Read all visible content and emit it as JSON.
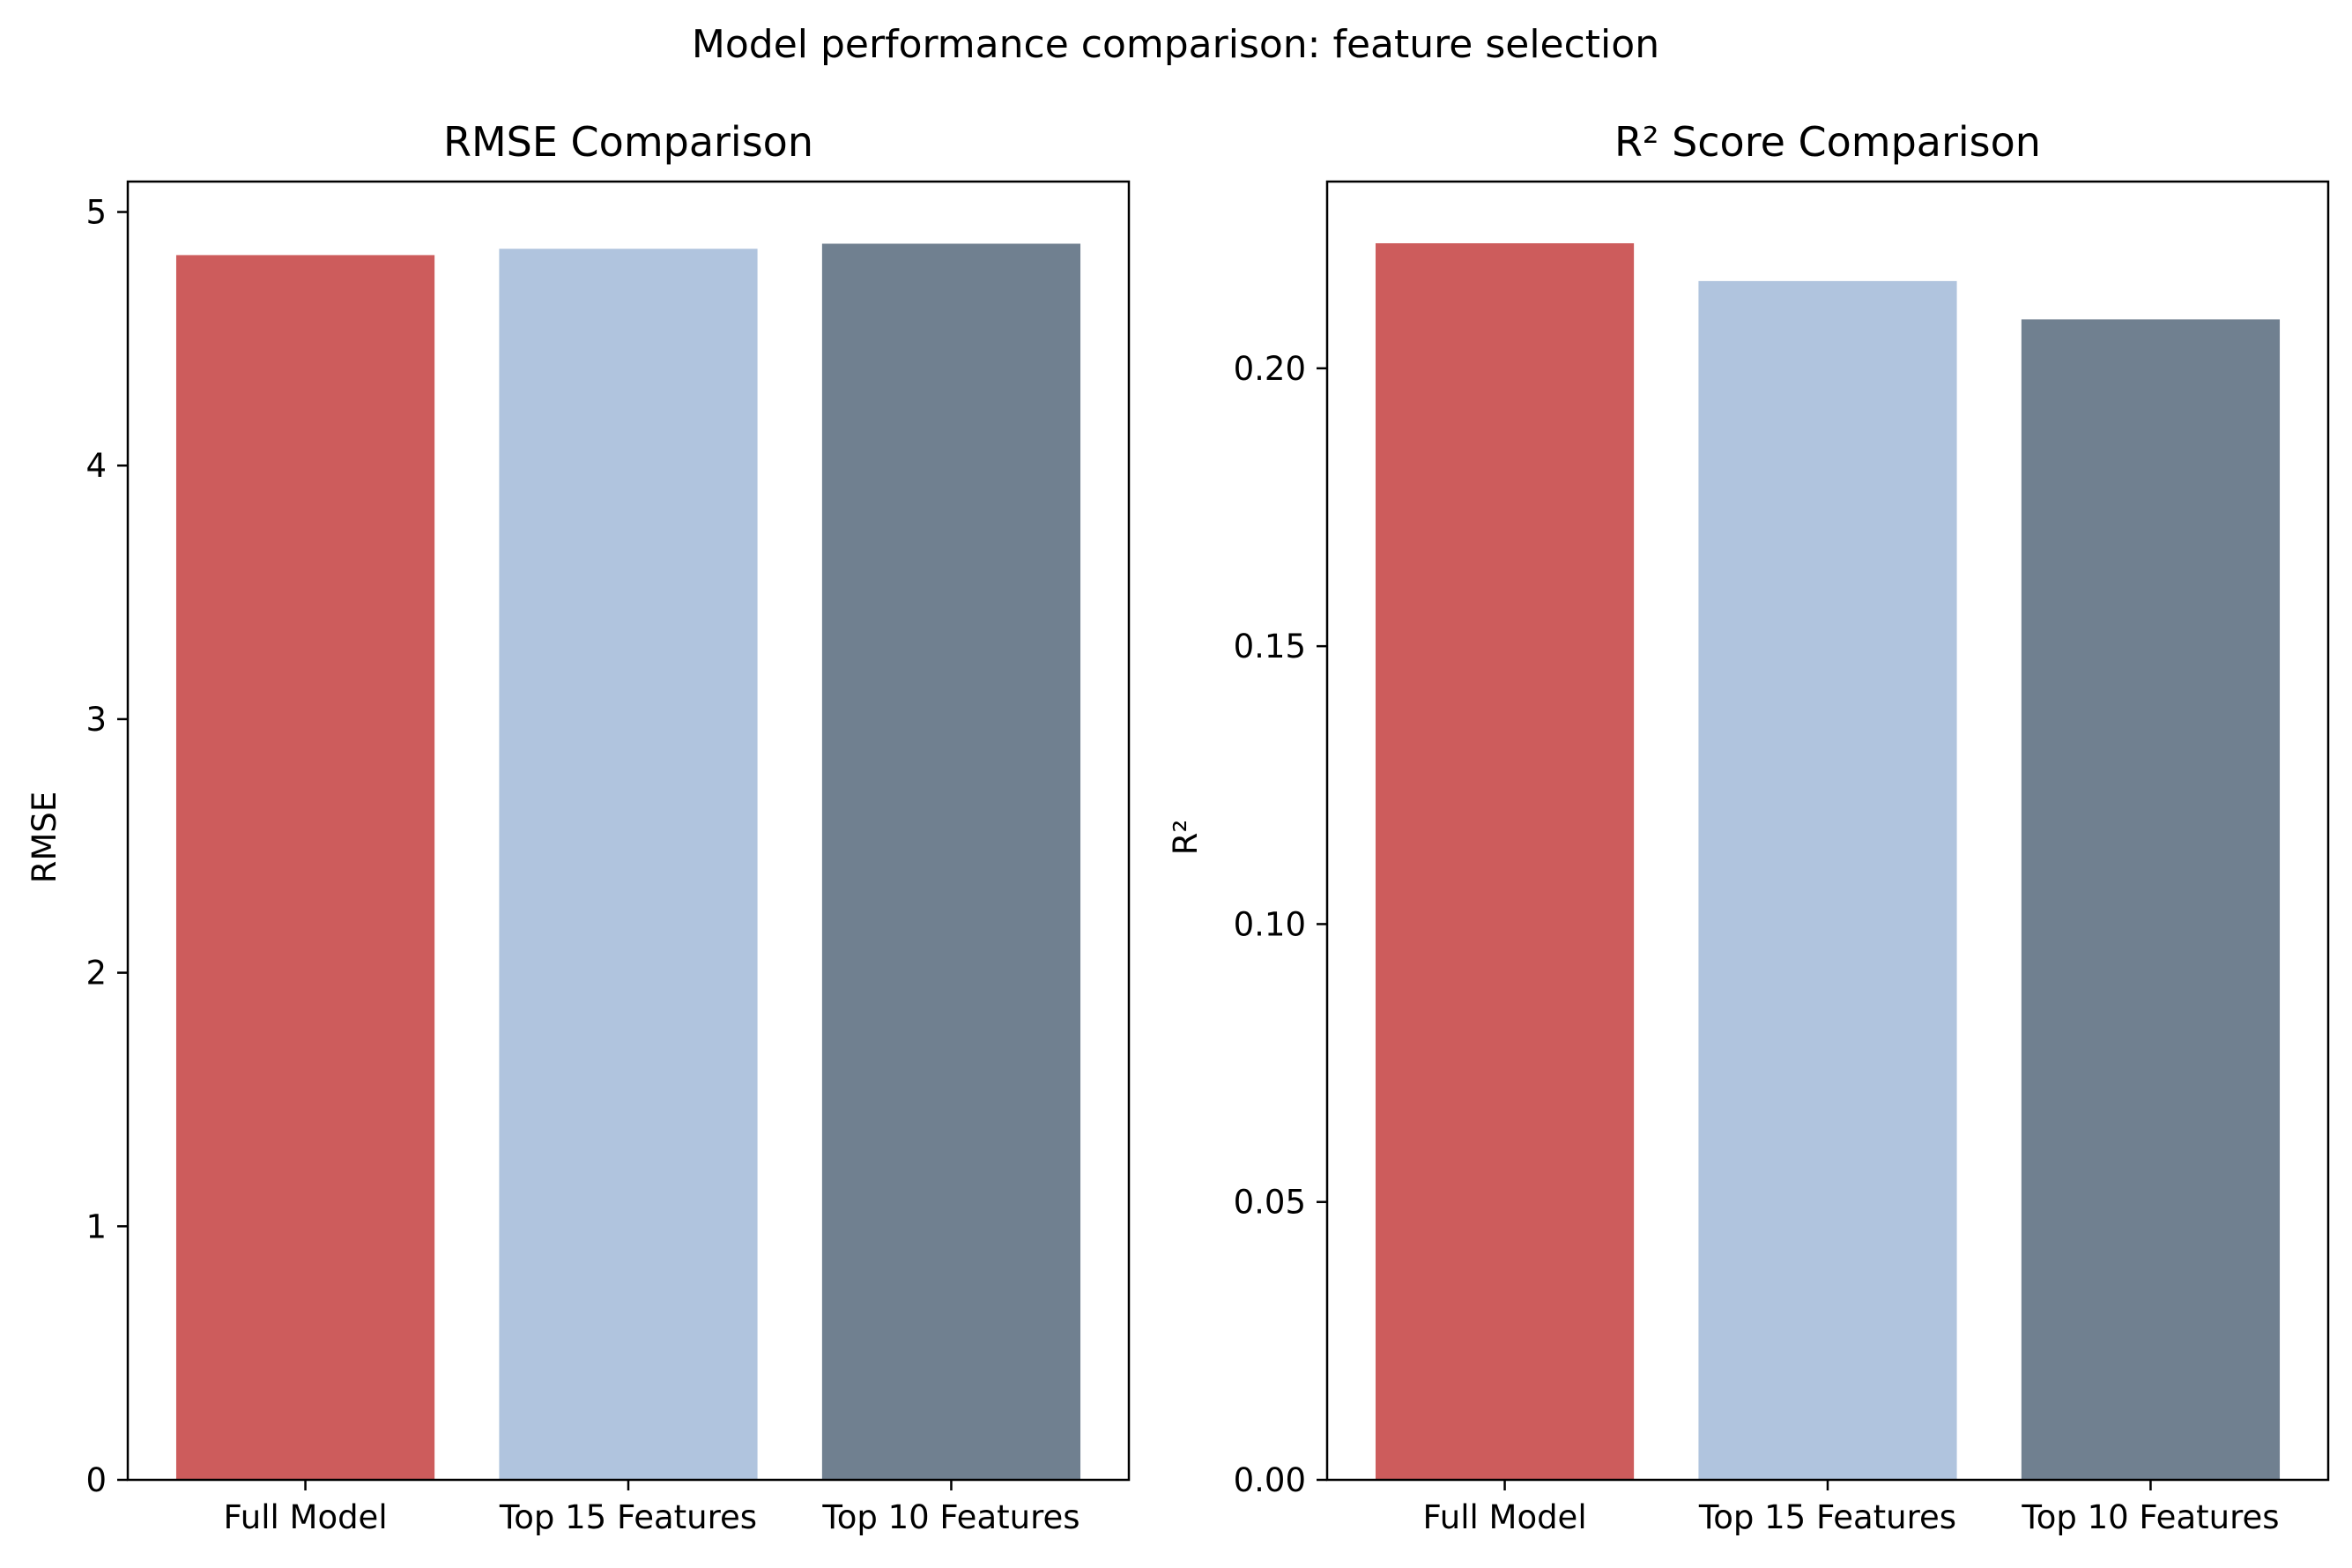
{
  "figure": {
    "suptitle": "Model performance comparison: feature selection"
  },
  "chart_data": [
    {
      "type": "bar",
      "title": "RMSE Comparison",
      "xlabel": "",
      "ylabel": "RMSE",
      "categories": [
        "Full Model",
        "Top 15 Features",
        "Top 10 Features"
      ],
      "values": [
        4.83,
        4.855,
        4.875
      ],
      "colors": [
        "#cd5c5c",
        "#b0c4de",
        "#708090"
      ],
      "ylim": [
        0,
        5.12
      ],
      "yticks": [
        0,
        1,
        2,
        3,
        4,
        5
      ],
      "ytick_labels": [
        "0",
        "1",
        "2",
        "3",
        "4",
        "5"
      ],
      "grid": false
    },
    {
      "type": "bar",
      "title": "R² Score Comparison",
      "xlabel": "",
      "ylabel": "R²",
      "categories": [
        "Full Model",
        "Top 15 Features",
        "Top 10 Features"
      ],
      "values": [
        0.2225,
        0.2157,
        0.2088
      ],
      "colors": [
        "#cd5c5c",
        "#b0c4de",
        "#708090"
      ],
      "ylim": [
        0,
        0.2336
      ],
      "yticks": [
        0,
        0.05,
        0.1,
        0.15,
        0.2
      ],
      "ytick_labels": [
        "0.00",
        "0.05",
        "0.10",
        "0.15",
        "0.20"
      ],
      "grid": false
    }
  ]
}
